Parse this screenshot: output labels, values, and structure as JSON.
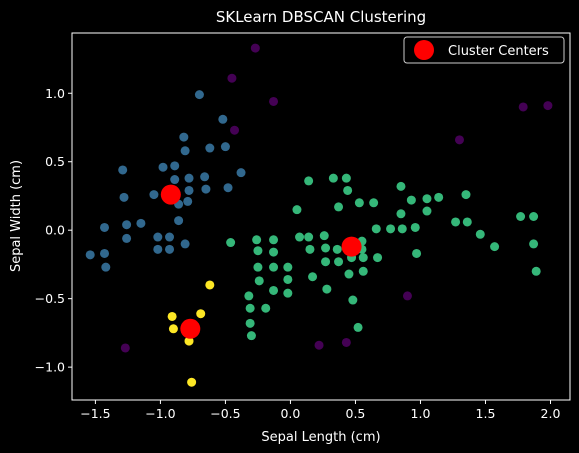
{
  "chart_data": {
    "type": "scatter",
    "title": "SKLearn DBSCAN Clustering",
    "xlabel": "Sepal Length (cm)",
    "ylabel": "Sepal Width (cm)",
    "xlim": [
      -1.68,
      2.15
    ],
    "ylim": [
      -1.24,
      1.44
    ],
    "xticks": [
      -1.5,
      -1.0,
      -0.5,
      0.0,
      0.5,
      1.0,
      1.5,
      2.0
    ],
    "xtick_labels": [
      "−1.5",
      "−1.0",
      "−0.5",
      "0.0",
      "0.5",
      "1.0",
      "1.5",
      "2.0"
    ],
    "yticks": [
      -1.0,
      -0.5,
      0.0,
      0.5,
      1.0
    ],
    "ytick_labels": [
      "−1.0",
      "−0.5",
      "0.0",
      "0.5",
      "1.0"
    ],
    "grid": false,
    "legend_position": "top-right",
    "series": [
      {
        "color": "#440154",
        "points": [
          [
            -0.27,
            1.33
          ],
          [
            -0.45,
            1.11
          ],
          [
            -0.13,
            0.94
          ],
          [
            -0.43,
            0.73
          ],
          [
            -1.27,
            -0.86
          ],
          [
            0.22,
            -0.84
          ],
          [
            0.43,
            -0.82
          ],
          [
            0.9,
            -0.48
          ],
          [
            1.3,
            0.66
          ],
          [
            1.79,
            0.9
          ],
          [
            1.98,
            0.91
          ]
        ]
      },
      {
        "color": "#31688e",
        "points": [
          [
            -0.7,
            0.99
          ],
          [
            -0.82,
            0.68
          ],
          [
            -0.81,
            0.58
          ],
          [
            -0.52,
            0.81
          ],
          [
            -0.62,
            0.6
          ],
          [
            -0.5,
            0.61
          ],
          [
            -0.98,
            0.46
          ],
          [
            -0.89,
            0.47
          ],
          [
            -1.29,
            0.44
          ],
          [
            -0.89,
            0.37
          ],
          [
            -0.78,
            0.38
          ],
          [
            -0.66,
            0.39
          ],
          [
            -1.28,
            0.24
          ],
          [
            -1.05,
            0.26
          ],
          [
            -0.93,
            0.27
          ],
          [
            -0.78,
            0.29
          ],
          [
            -0.65,
            0.3
          ],
          [
            -0.48,
            0.31
          ],
          [
            -0.38,
            0.42
          ],
          [
            -0.86,
            0.19
          ],
          [
            -0.79,
            0.21
          ],
          [
            -0.86,
            0.07
          ],
          [
            -1.15,
            0.05
          ],
          [
            -1.26,
            0.04
          ],
          [
            -1.43,
            0.02
          ],
          [
            -1.26,
            -0.06
          ],
          [
            -1.02,
            -0.05
          ],
          [
            -0.93,
            -0.05
          ],
          [
            -0.81,
            -0.1
          ],
          [
            -1.02,
            -0.14
          ],
          [
            -0.93,
            -0.14
          ],
          [
            -1.43,
            -0.17
          ],
          [
            -1.54,
            -0.18
          ],
          [
            -1.42,
            -0.27
          ]
        ]
      },
      {
        "color": "#35b779",
        "points": [
          [
            0.14,
            0.36
          ],
          [
            0.33,
            0.38
          ],
          [
            0.43,
            0.38
          ],
          [
            0.44,
            0.29
          ],
          [
            0.64,
            0.2
          ],
          [
            0.53,
            0.2
          ],
          [
            0.37,
            0.17
          ],
          [
            0.05,
            0.15
          ],
          [
            0.85,
            0.32
          ],
          [
            0.93,
            0.22
          ],
          [
            1.05,
            0.23
          ],
          [
            1.14,
            0.24
          ],
          [
            1.35,
            0.26
          ],
          [
            0.85,
            0.12
          ],
          [
            1.05,
            0.14
          ],
          [
            1.27,
            0.06
          ],
          [
            1.36,
            0.06
          ],
          [
            1.77,
            0.1
          ],
          [
            1.87,
            0.1
          ],
          [
            0.66,
            0.01
          ],
          [
            0.77,
            0.01
          ],
          [
            0.86,
            0.01
          ],
          [
            0.96,
            0.02
          ],
          [
            1.46,
            -0.03
          ],
          [
            1.87,
            -0.1
          ],
          [
            1.57,
            -0.12
          ],
          [
            -0.46,
            -0.09
          ],
          [
            -0.26,
            -0.07
          ],
          [
            -0.13,
            -0.07
          ],
          [
            0.07,
            -0.05
          ],
          [
            0.14,
            -0.05
          ],
          [
            0.26,
            -0.04
          ],
          [
            0.27,
            -0.13
          ],
          [
            0.15,
            -0.14
          ],
          [
            0.36,
            -0.14
          ],
          [
            0.55,
            -0.08
          ],
          [
            0.55,
            -0.14
          ],
          [
            -0.25,
            -0.15
          ],
          [
            -0.13,
            -0.16
          ],
          [
            0.47,
            -0.2
          ],
          [
            0.56,
            -0.2
          ],
          [
            0.67,
            -0.2
          ],
          [
            0.97,
            -0.17
          ],
          [
            0.27,
            -0.23
          ],
          [
            0.37,
            -0.23
          ],
          [
            -0.25,
            -0.27
          ],
          [
            -0.13,
            -0.27
          ],
          [
            -0.02,
            -0.27
          ],
          [
            0.56,
            -0.3
          ],
          [
            0.45,
            -0.32
          ],
          [
            0.17,
            -0.34
          ],
          [
            -0.24,
            -0.37
          ],
          [
            -0.02,
            -0.36
          ],
          [
            -0.13,
            -0.44
          ],
          [
            -0.02,
            -0.46
          ],
          [
            -0.32,
            -0.48
          ],
          [
            0.28,
            -0.43
          ],
          [
            0.48,
            -0.51
          ],
          [
            -0.31,
            -0.57
          ],
          [
            -0.19,
            -0.57
          ],
          [
            -0.31,
            -0.68
          ],
          [
            0.52,
            -0.71
          ],
          [
            -0.3,
            -0.77
          ],
          [
            1.89,
            -0.3
          ]
        ]
      },
      {
        "color": "#fde725",
        "points": [
          [
            -0.62,
            -0.4
          ],
          [
            -0.91,
            -0.63
          ],
          [
            -0.69,
            -0.61
          ],
          [
            -0.9,
            -0.72
          ],
          [
            -0.78,
            -0.81
          ],
          [
            -0.76,
            -1.11
          ]
        ]
      }
    ],
    "centers": {
      "name": "Cluster Centers",
      "color": "#ff0000",
      "points": [
        [
          -0.92,
          0.26
        ],
        [
          0.47,
          -0.12
        ],
        [
          -0.77,
          -0.72
        ]
      ]
    }
  }
}
